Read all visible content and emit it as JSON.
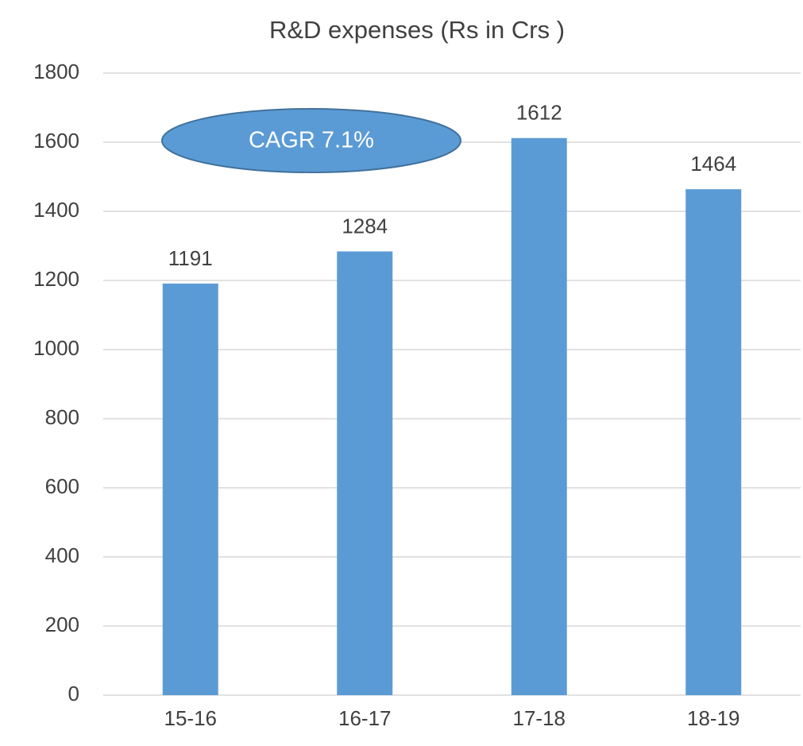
{
  "chart_data": {
    "type": "bar",
    "title": "R&D expenses (Rs in Crs )",
    "categories": [
      "15-16",
      "16-17",
      "17-18",
      "18-19"
    ],
    "values": [
      1191,
      1284,
      1612,
      1464
    ],
    "color": "#5b9bd5",
    "ylim": [
      0,
      1800
    ],
    "yticks": [
      0,
      200,
      400,
      600,
      800,
      1000,
      1200,
      1400,
      1600,
      1800
    ],
    "grid": true,
    "annotation": "CAGR 7.1%"
  }
}
